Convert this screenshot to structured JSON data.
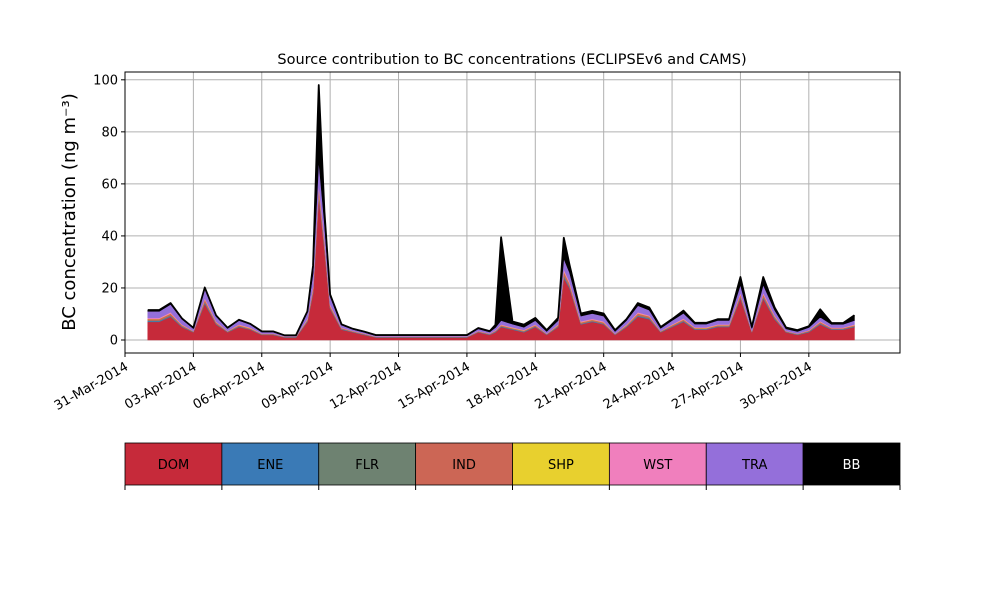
{
  "chart_data": {
    "type": "area",
    "stacked": true,
    "title": "Source contribution to BC concentrations (ECLIPSEv6 and CAMS)",
    "xlabel": "",
    "ylabel": "BC concentration (ng m⁻³)",
    "ylim": [
      -5,
      103
    ],
    "yticks": [
      0,
      20,
      40,
      60,
      80,
      100
    ],
    "xlim": [
      "2014-03-31",
      "2014-05-04"
    ],
    "xticks": [
      "31-Mar-2014",
      "03-Apr-2014",
      "06-Apr-2014",
      "09-Apr-2014",
      "12-Apr-2014",
      "15-Apr-2014",
      "18-Apr-2014",
      "21-Apr-2014",
      "24-Apr-2014",
      "27-Apr-2014",
      "30-Apr-2014"
    ],
    "grid": true,
    "x": [
      "2014-04-01",
      "2014-04-01T12",
      "2014-04-02",
      "2014-04-02T12",
      "2014-04-03",
      "2014-04-03T12",
      "2014-04-04",
      "2014-04-04T12",
      "2014-04-05",
      "2014-04-05T12",
      "2014-04-06",
      "2014-04-06T12",
      "2014-04-07",
      "2014-04-07T12",
      "2014-04-08",
      "2014-04-08T06",
      "2014-04-08T12",
      "2014-04-08T18",
      "2014-04-09",
      "2014-04-09T12",
      "2014-04-10",
      "2014-04-10T12",
      "2014-04-11",
      "2014-04-11T12",
      "2014-04-12",
      "2014-04-12T12",
      "2014-04-13",
      "2014-04-13T12",
      "2014-04-14",
      "2014-04-14T12",
      "2014-04-15",
      "2014-04-15T12",
      "2014-04-16",
      "2014-04-16T06",
      "2014-04-16T12",
      "2014-04-17",
      "2014-04-17T12",
      "2014-04-18",
      "2014-04-18T12",
      "2014-04-19",
      "2014-04-19T06",
      "2014-04-19T12",
      "2014-04-20",
      "2014-04-20T12",
      "2014-04-21",
      "2014-04-21T12",
      "2014-04-22",
      "2014-04-22T12",
      "2014-04-23",
      "2014-04-23T12",
      "2014-04-24",
      "2014-04-24T12",
      "2014-04-25",
      "2014-04-25T12",
      "2014-04-26",
      "2014-04-26T12",
      "2014-04-27",
      "2014-04-27T12",
      "2014-04-28",
      "2014-04-28T12",
      "2014-04-29",
      "2014-04-29T12",
      "2014-04-30",
      "2014-04-30T12",
      "2014-05-01",
      "2014-05-01T12",
      "2014-05-02"
    ],
    "series": [
      {
        "name": "DOM",
        "color": "#c62a3a",
        "values": [
          7,
          7,
          9,
          5,
          3,
          14,
          6,
          3,
          5,
          4,
          2,
          2,
          1,
          1,
          7,
          18,
          55,
          35,
          12,
          4,
          3,
          2,
          1,
          1,
          1,
          1,
          1,
          1,
          1,
          1,
          1,
          3,
          2,
          3,
          5,
          4,
          3,
          5,
          2,
          5,
          24,
          20,
          6,
          7,
          6,
          2,
          5,
          9,
          8,
          3,
          5,
          7,
          4,
          4,
          5,
          5,
          16,
          3,
          16,
          8,
          3,
          2,
          3,
          6,
          4,
          4,
          5
        ]
      },
      {
        "name": "ENE",
        "color": "#3a7ab6",
        "values": [
          0.3,
          0.3,
          0.3,
          0.2,
          0.1,
          0.4,
          0.2,
          0.1,
          0.2,
          0.1,
          0.1,
          0.1,
          0.1,
          0.1,
          0.2,
          0.5,
          0.8,
          0.6,
          0.3,
          0.2,
          0.1,
          0.1,
          0.1,
          0.1,
          0.1,
          0.1,
          0.1,
          0.1,
          0.1,
          0.1,
          0.1,
          0.1,
          0.1,
          0.2,
          0.2,
          0.2,
          0.2,
          0.2,
          0.1,
          0.2,
          0.5,
          0.4,
          0.2,
          0.2,
          0.2,
          0.1,
          0.2,
          0.3,
          0.3,
          0.1,
          0.2,
          0.3,
          0.2,
          0.2,
          0.2,
          0.2,
          0.4,
          0.1,
          0.4,
          0.3,
          0.1,
          0.1,
          0.2,
          0.3,
          0.2,
          0.2,
          0.2
        ]
      },
      {
        "name": "FLR",
        "color": "#6e8271",
        "values": [
          0.2,
          0.2,
          0.2,
          0.1,
          0.1,
          0.2,
          0.1,
          0.1,
          0.1,
          0.1,
          0.1,
          0.1,
          0.1,
          0.1,
          0.1,
          0.2,
          0.3,
          0.3,
          0.1,
          0.1,
          0.1,
          0.1,
          0.1,
          0.1,
          0.1,
          0.1,
          0.1,
          0.1,
          0.1,
          0.1,
          0.1,
          0.1,
          0.1,
          0.1,
          0.1,
          0.1,
          0.1,
          0.1,
          0.1,
          0.1,
          0.3,
          0.2,
          0.1,
          0.1,
          0.1,
          0.1,
          0.1,
          0.2,
          0.2,
          0.1,
          0.1,
          0.1,
          0.1,
          0.1,
          0.1,
          0.1,
          0.2,
          0.1,
          0.2,
          0.2,
          0.1,
          0.1,
          0.1,
          0.1,
          0.1,
          0.1,
          0.1
        ]
      },
      {
        "name": "IND",
        "color": "#cc6655",
        "values": [
          0.6,
          0.6,
          0.7,
          0.4,
          0.2,
          1.0,
          0.5,
          0.2,
          0.4,
          0.3,
          0.2,
          0.2,
          0.1,
          0.1,
          0.5,
          1.2,
          2.5,
          1.8,
          0.8,
          0.3,
          0.2,
          0.2,
          0.1,
          0.1,
          0.1,
          0.1,
          0.1,
          0.1,
          0.1,
          0.1,
          0.1,
          0.2,
          0.2,
          0.3,
          0.4,
          0.3,
          0.3,
          0.4,
          0.2,
          0.4,
          1.5,
          1.2,
          0.5,
          0.5,
          0.5,
          0.2,
          0.4,
          0.7,
          0.6,
          0.2,
          0.4,
          0.5,
          0.3,
          0.3,
          0.4,
          0.4,
          1.0,
          0.2,
          1.0,
          0.6,
          0.2,
          0.2,
          0.3,
          0.5,
          0.3,
          0.3,
          0.4
        ]
      },
      {
        "name": "SHP",
        "color": "#e8d02e",
        "values": [
          0.1,
          0.1,
          0.1,
          0.1,
          0.0,
          0.1,
          0.1,
          0.0,
          0.1,
          0.1,
          0.0,
          0.0,
          0.0,
          0.0,
          0.1,
          0.1,
          0.2,
          0.2,
          0.1,
          0.0,
          0.0,
          0.0,
          0.0,
          0.0,
          0.0,
          0.0,
          0.0,
          0.0,
          0.0,
          0.0,
          0.0,
          0.0,
          0.0,
          0.0,
          0.1,
          0.1,
          0.1,
          0.1,
          0.0,
          0.1,
          0.2,
          0.1,
          0.1,
          0.1,
          0.1,
          0.0,
          0.1,
          0.1,
          0.1,
          0.0,
          0.1,
          0.1,
          0.1,
          0.1,
          0.1,
          0.1,
          0.1,
          0.0,
          0.1,
          0.1,
          0.0,
          0.0,
          0.0,
          0.1,
          0.0,
          0.0,
          0.1
        ]
      },
      {
        "name": "WST",
        "color": "#f07fbd",
        "values": [
          0.3,
          0.3,
          0.4,
          0.2,
          0.1,
          0.5,
          0.2,
          0.1,
          0.2,
          0.2,
          0.1,
          0.1,
          0.1,
          0.1,
          0.3,
          0.6,
          1.2,
          0.9,
          0.4,
          0.2,
          0.1,
          0.1,
          0.1,
          0.1,
          0.1,
          0.1,
          0.1,
          0.1,
          0.1,
          0.1,
          0.1,
          0.1,
          0.1,
          0.2,
          0.2,
          0.2,
          0.2,
          0.2,
          0.1,
          0.2,
          0.8,
          0.6,
          0.3,
          0.3,
          0.3,
          0.1,
          0.2,
          0.4,
          0.3,
          0.1,
          0.2,
          0.3,
          0.2,
          0.2,
          0.2,
          0.2,
          0.5,
          0.1,
          0.5,
          0.3,
          0.1,
          0.1,
          0.2,
          0.3,
          0.2,
          0.2,
          0.2
        ]
      },
      {
        "name": "TRA",
        "color": "#946fda",
        "values": [
          2.5,
          2.5,
          3,
          2,
          1,
          3.5,
          2,
          1,
          1.5,
          1.2,
          0.6,
          0.6,
          0.3,
          0.3,
          2.5,
          5,
          9,
          6,
          3,
          1,
          0.6,
          0.5,
          0.3,
          0.3,
          0.3,
          0.3,
          0.3,
          0.3,
          0.3,
          0.3,
          0.3,
          0.8,
          0.6,
          1,
          1.5,
          1.2,
          1,
          1.5,
          0.8,
          1.5,
          4,
          3.5,
          2,
          2,
          2,
          0.8,
          1.5,
          2.5,
          2,
          1,
          1.5,
          2,
          1.2,
          1.2,
          1.5,
          1.5,
          3,
          1,
          3,
          2,
          0.8,
          0.8,
          1,
          1.5,
          1.2,
          1.2,
          1.5
        ]
      },
      {
        "name": "BB",
        "color": "#000000",
        "values": [
          0.5,
          0.5,
          0.5,
          0.3,
          0.2,
          0.5,
          0.3,
          0.2,
          0.3,
          0.2,
          0.2,
          0.2,
          0.1,
          0.1,
          0.3,
          3,
          29,
          4.5,
          0.8,
          0.2,
          0.2,
          0.2,
          0.2,
          0.2,
          0.2,
          0.2,
          0.2,
          0.2,
          0.2,
          0.2,
          0.2,
          0.3,
          0.3,
          1,
          32,
          1,
          1,
          1,
          0.5,
          1,
          8,
          3,
          1,
          1,
          1,
          0.5,
          0.5,
          1,
          1,
          0.5,
          0.5,
          1,
          0.5,
          0.5,
          0.5,
          0.5,
          3,
          0.5,
          3,
          1,
          0.5,
          0.5,
          0.5,
          3,
          0.5,
          0.5,
          2
        ]
      }
    ],
    "legend": {
      "placement": "bottom",
      "items": [
        "DOM",
        "ENE",
        "FLR",
        "IND",
        "SHP",
        "WST",
        "TRA",
        "BB"
      ]
    }
  }
}
